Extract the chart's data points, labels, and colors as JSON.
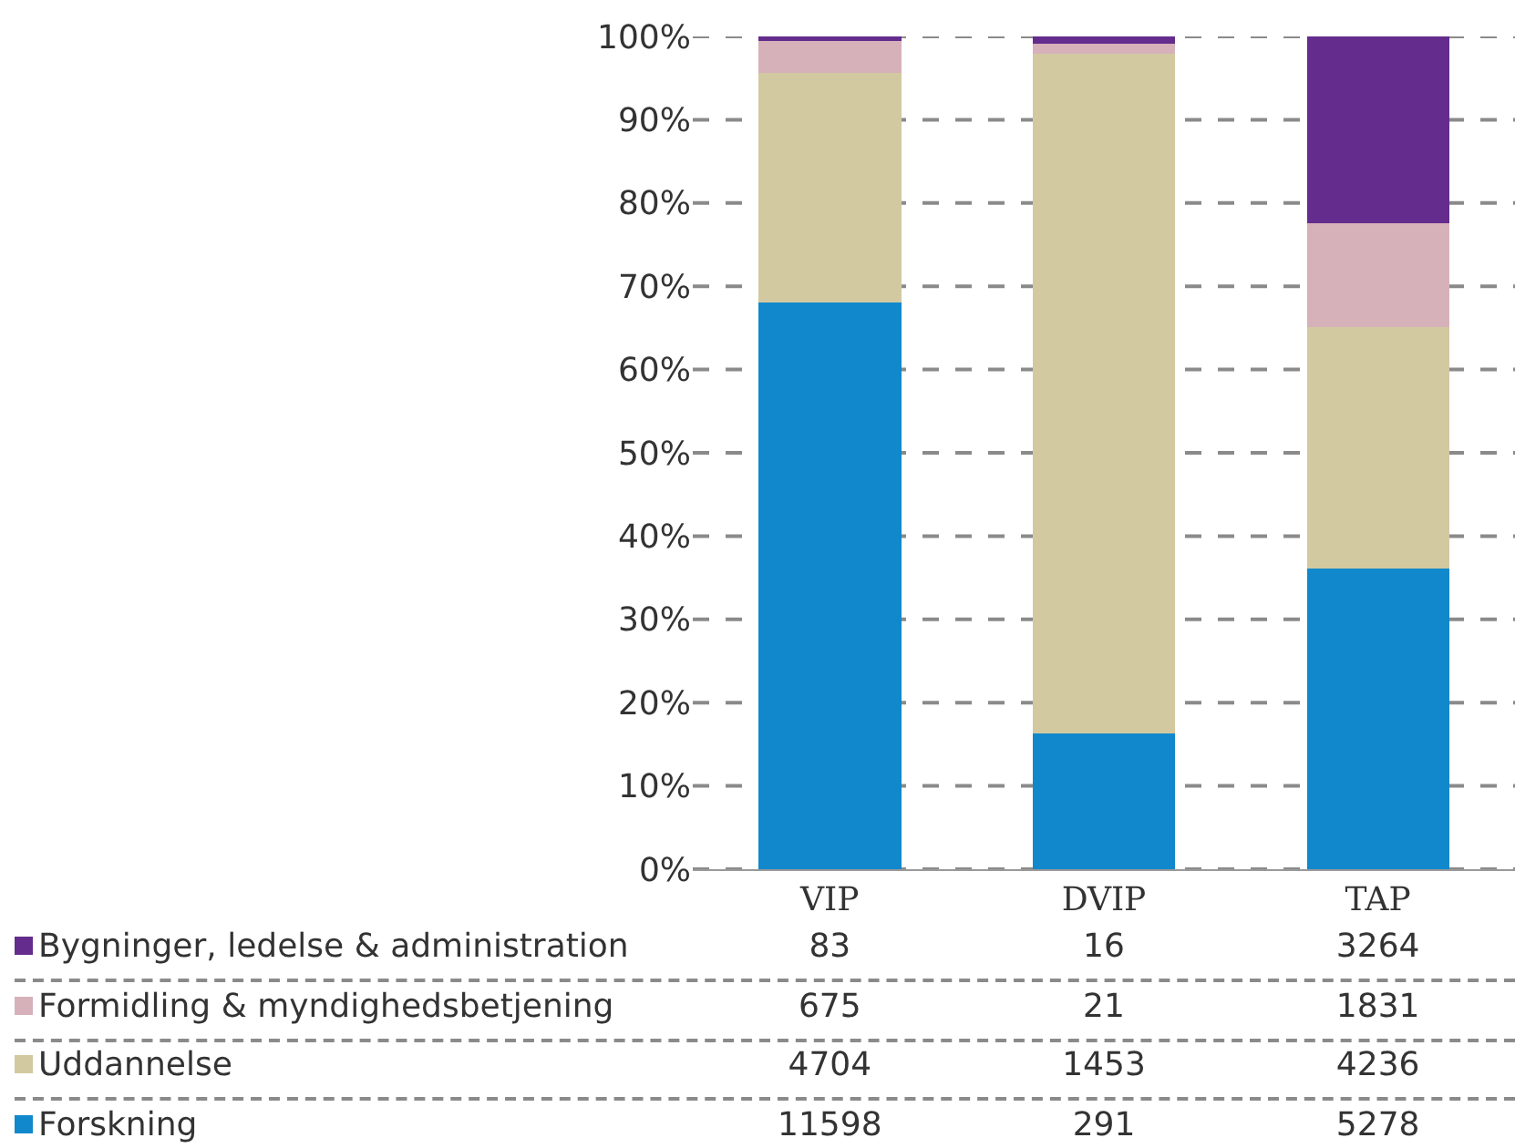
{
  "chart_data": {
    "type": "bar",
    "stacked": true,
    "categories": [
      "VIP",
      "DVIP",
      "TAP"
    ],
    "series": [
      {
        "name": "Forskning",
        "color": "#1188cc",
        "values": [
          68.0,
          16.3,
          36.1
        ]
      },
      {
        "name": "Uddannelse",
        "color": "#d2c9a1",
        "values": [
          27.6,
          81.6,
          29.0
        ]
      },
      {
        "name": "Formidling & myndighedsbetjening",
        "color": "#d6b1b9",
        "values": [
          3.9,
          1.2,
          12.5
        ]
      },
      {
        "name": "Bygninger, ledelse & administration",
        "color": "#642c8c",
        "values": [
          0.5,
          0.9,
          22.4
        ]
      }
    ],
    "annotations": [
      "83",
      "16",
      "3264",
      "675",
      "21",
      "1831",
      "4704",
      "1453",
      "4236",
      "11598",
      "291",
      "5278"
    ],
    "ylim": [
      0,
      100
    ],
    "yticks": [
      {
        "value": 0,
        "label": "0%"
      },
      {
        "value": 10,
        "label": "10%"
      },
      {
        "value": 20,
        "label": "20%"
      },
      {
        "value": 30,
        "label": "30%"
      },
      {
        "value": 40,
        "label": "40%"
      },
      {
        "value": 50,
        "label": "50%"
      },
      {
        "value": 60,
        "label": "60%"
      },
      {
        "value": 70,
        "label": "70%"
      },
      {
        "value": 80,
        "label": "80%"
      },
      {
        "value": 90,
        "label": "90%"
      },
      {
        "value": 100,
        "label": "100%"
      }
    ],
    "grid": "y",
    "legend": "bottom"
  }
}
